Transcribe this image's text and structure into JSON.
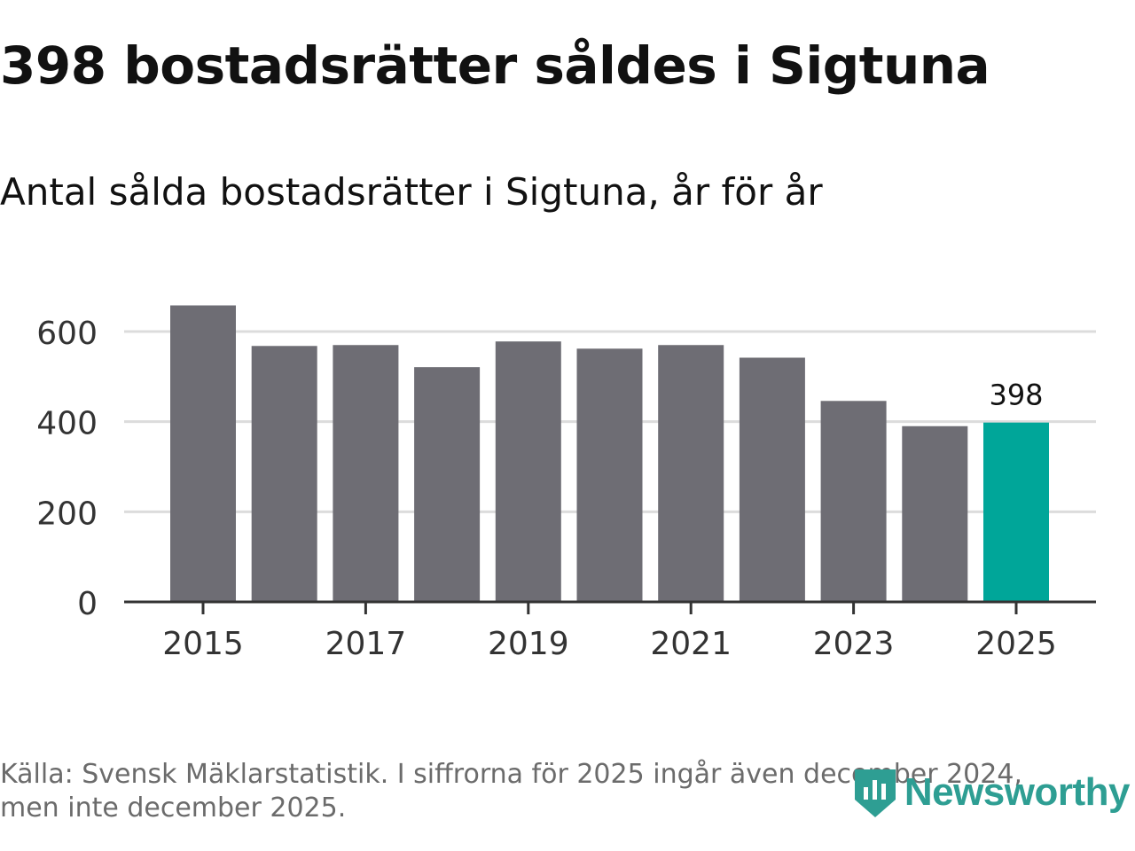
{
  "header": {
    "title": "398 bostadsrätter såldes i Sigtuna",
    "subtitle": "Antal sålda bostadsrätter i Sigtuna, år för år"
  },
  "footer": {
    "source_line1": "Källa: Svensk Mäklarstatistik. I siffrorna för 2025 ingår även december 2024,",
    "source_line2": "men inte december 2025."
  },
  "logo": {
    "text": "Newsworthy",
    "icon": "newsworthy-logo-icon"
  },
  "colors": {
    "bar": "#6e6d74",
    "highlight": "#00a699",
    "grid": "#dcdcdc",
    "axis": "#333333",
    "text": "#333333",
    "logo": "#2e9e93"
  },
  "chart_data": {
    "type": "bar",
    "title": "Antal sålda bostadsrätter i Sigtuna, år för år",
    "xlabel": "",
    "ylabel": "",
    "categories": [
      "2015",
      "2016",
      "2017",
      "2018",
      "2019",
      "2020",
      "2021",
      "2022",
      "2023",
      "2024",
      "2025"
    ],
    "values": [
      658,
      568,
      570,
      521,
      578,
      562,
      570,
      542,
      446,
      390,
      398
    ],
    "highlight_index": 10,
    "data_labels": [
      {
        "index": 10,
        "text": "398"
      }
    ],
    "x_tick_labels": [
      "2015",
      "2017",
      "2019",
      "2021",
      "2023",
      "2025"
    ],
    "y_ticks": [
      0,
      200,
      400,
      600
    ],
    "ylim": [
      0,
      660
    ],
    "grid": true
  }
}
